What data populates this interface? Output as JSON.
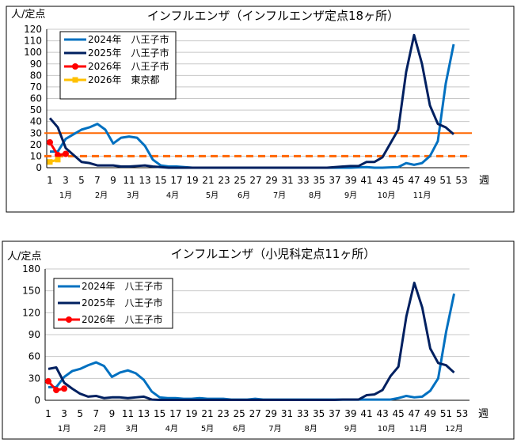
{
  "chart_data": [
    {
      "type": "line",
      "title": "インフルエンザ（インフルエンザ定点18ヶ所）",
      "ylabel": "人/定点",
      "xlabel": "週",
      "ylim": [
        0,
        120
      ],
      "yticks": [
        0,
        10,
        20,
        30,
        40,
        50,
        60,
        70,
        80,
        90,
        100,
        110,
        120
      ],
      "grid": true,
      "legend": "top-left",
      "xticks": [
        1,
        3,
        5,
        7,
        9,
        11,
        13,
        15,
        17,
        19,
        21,
        23,
        25,
        27,
        29,
        31,
        33,
        35,
        37,
        39,
        41,
        43,
        45,
        47,
        49,
        51,
        53
      ],
      "months": [
        {
          "label": "1月",
          "week": 3
        },
        {
          "label": "2月",
          "week": 7.5
        },
        {
          "label": "3月",
          "week": 11.5
        },
        {
          "label": "4月",
          "week": 16.5
        },
        {
          "label": "5月",
          "week": 21.5
        },
        {
          "label": "6月",
          "week": 25.5
        },
        {
          "label": "7月",
          "week": 30
        },
        {
          "label": "8月",
          "week": 34.5
        },
        {
          "label": "9月",
          "week": 39
        },
        {
          "label": "10月",
          "week": 43.5
        },
        {
          "label": "11月",
          "week": 48
        }
      ],
      "thresholds": [
        {
          "value": 30,
          "style": "solid",
          "color": "#FF6600"
        },
        {
          "value": 10,
          "style": "dashed",
          "color": "#FF6600"
        }
      ],
      "series": [
        {
          "name": "2024年　八王子市",
          "color": "#0070C0",
          "marker": "none",
          "start": 1,
          "values": [
            14,
            14,
            25,
            29,
            33,
            35,
            38,
            33,
            21,
            26,
            27,
            26,
            19,
            7,
            2,
            1,
            1,
            0.5,
            0,
            0,
            0,
            0,
            0,
            0,
            0,
            0,
            0,
            0,
            0,
            0,
            0,
            0,
            0,
            0,
            0,
            0,
            0,
            0,
            0,
            0.3,
            0.5,
            0,
            0,
            0.3,
            0.5,
            4,
            2.5,
            4,
            10,
            23,
            73,
            107
          ]
        },
        {
          "name": "2025年　八王子市",
          "color": "#002060",
          "marker": "none",
          "start": 1,
          "values": [
            43,
            35,
            17,
            11,
            5,
            4,
            2,
            2,
            2,
            1,
            1,
            1.5,
            2,
            1,
            0.5,
            0,
            0,
            0,
            0,
            0,
            0,
            0,
            0,
            0,
            0,
            0,
            0,
            0,
            0,
            0,
            0,
            0,
            0,
            0,
            0,
            0,
            0.5,
            1,
            1.5,
            1.5,
            5,
            5,
            9,
            21,
            33,
            83,
            115,
            90,
            54,
            38,
            35,
            29
          ]
        },
        {
          "name": "2026年　八王子市",
          "color": "#FF0000",
          "marker": "circle",
          "start": 1,
          "values": [
            22,
            11,
            12
          ]
        },
        {
          "name": "2026年　東京都",
          "color": "#FFC000",
          "marker": "square",
          "start": 1,
          "values": [
            5,
            7
          ]
        }
      ]
    },
    {
      "type": "line",
      "title": "インフルエンザ（小児科定点11ヶ所）",
      "ylabel": "人/定点",
      "xlabel": "週",
      "ylim": [
        0,
        180
      ],
      "yticks": [
        0,
        30,
        60,
        90,
        120,
        150,
        180
      ],
      "grid": true,
      "legend": "top-left",
      "xticks": [
        1,
        3,
        5,
        7,
        9,
        11,
        13,
        15,
        17,
        19,
        21,
        23,
        25,
        27,
        29,
        31,
        33,
        35,
        37,
        39,
        41,
        43,
        45,
        47,
        49,
        51,
        53
      ],
      "months": [
        {
          "label": "1月",
          "week": 3
        },
        {
          "label": "2月",
          "week": 7.5
        },
        {
          "label": "3月",
          "week": 11.5
        },
        {
          "label": "4月",
          "week": 16.5
        },
        {
          "label": "5月",
          "week": 21
        },
        {
          "label": "6月",
          "week": 25
        },
        {
          "label": "7月",
          "week": 29.5
        },
        {
          "label": "8月",
          "week": 34
        },
        {
          "label": "9月",
          "week": 39
        },
        {
          "label": "10月",
          "week": 43.5
        },
        {
          "label": "11月",
          "week": 47.5
        },
        {
          "label": "12月",
          "week": 52
        }
      ],
      "thresholds": [],
      "series": [
        {
          "name": "2024年　八王子市",
          "color": "#0070C0",
          "marker": "none",
          "start": 1,
          "values": [
            18,
            18,
            32,
            40,
            43,
            48,
            52,
            47,
            32,
            38,
            41,
            37,
            28,
            12,
            4,
            3,
            3,
            2,
            2,
            3,
            2,
            2,
            2,
            1,
            1,
            1,
            2,
            1,
            1,
            1,
            1,
            1,
            1,
            1,
            1,
            1,
            1,
            1,
            1,
            1,
            1,
            1,
            1,
            1,
            3,
            6,
            4,
            5,
            13,
            30,
            94,
            146
          ]
        },
        {
          "name": "2025年　八王子市",
          "color": "#002060",
          "marker": "none",
          "start": 1,
          "values": [
            43,
            45,
            24,
            16,
            9,
            5,
            6,
            3,
            4,
            4,
            3,
            4,
            5,
            1,
            0.5,
            0.5,
            0.5,
            0.5,
            0.5,
            0.5,
            0.5,
            0.5,
            0.5,
            0.5,
            0.5,
            0.5,
            0.5,
            0.5,
            0.5,
            0.5,
            0.5,
            0.5,
            0.5,
            0.5,
            0.5,
            0.5,
            0.5,
            1,
            1,
            1,
            7,
            8,
            14,
            33,
            46,
            115,
            161,
            127,
            71,
            51,
            48,
            38
          ]
        },
        {
          "name": "2026年　八王子市",
          "color": "#FF0000",
          "marker": "circle",
          "start": 1,
          "values": [
            26,
            14,
            16
          ]
        }
      ]
    }
  ]
}
